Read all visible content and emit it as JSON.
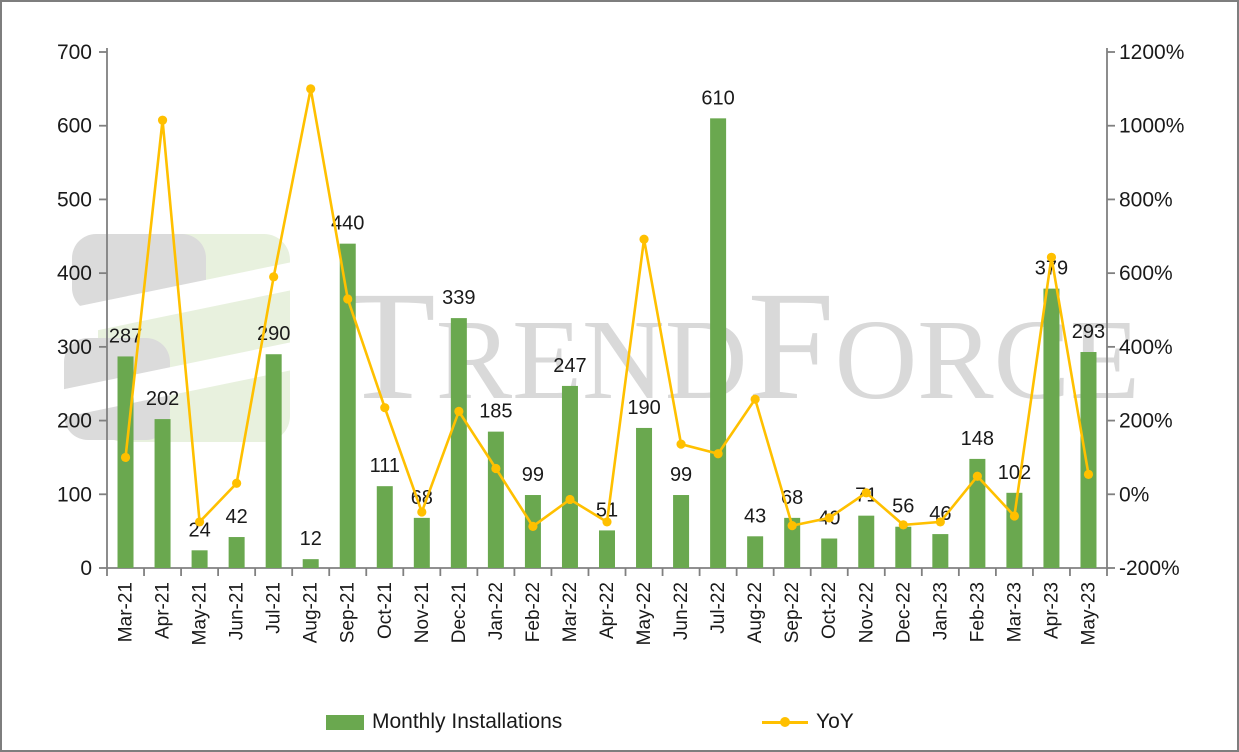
{
  "watermark": {
    "text": "TrendForce",
    "segments": [
      {
        "t": "T",
        "big": true
      },
      {
        "t": "REND",
        "big": false
      },
      {
        "t": "F",
        "big": true
      },
      {
        "t": "ORCE",
        "big": false
      }
    ],
    "text_color": "#d9d9d9",
    "logo_gray": "#dbdbdb",
    "logo_green": "#e8f1de"
  },
  "legend": {
    "bars_label": "Monthly Installations",
    "line_label": "YoY"
  },
  "chart_data": {
    "type": "bar",
    "subtype": "combo bar + line, dual axis",
    "categories": [
      "Mar-21",
      "Apr-21",
      "May-21",
      "Jun-21",
      "Jul-21",
      "Aug-21",
      "Sep-21",
      "Oct-21",
      "Nov-21",
      "Dec-21",
      "Jan-22",
      "Feb-22",
      "Mar-22",
      "Apr-22",
      "May-22",
      "Jun-22",
      "Jul-22",
      "Aug-22",
      "Sep-22",
      "Oct-22",
      "Nov-22",
      "Dec-22",
      "Jan-23",
      "Feb-23",
      "Mar-23",
      "Apr-23",
      "May-23"
    ],
    "series": [
      {
        "name": "Monthly Installations",
        "type": "bar",
        "axis": "left",
        "color": "#6aa84f",
        "values": [
          287,
          202,
          24,
          42,
          290,
          12,
          440,
          111,
          68,
          339,
          185,
          99,
          247,
          51,
          190,
          99,
          610,
          43,
          68,
          40,
          71,
          56,
          46,
          148,
          102,
          379,
          293
        ]
      },
      {
        "name": "YoY",
        "type": "line",
        "axis": "right",
        "color": "#ffc000",
        "unit": "%",
        "values": [
          100,
          1015,
          -75,
          30,
          590,
          1100,
          530,
          235,
          -48,
          225,
          70,
          -87,
          -14,
          -75,
          692,
          136,
          110,
          258,
          -85,
          -64,
          4,
          -83,
          -75,
          49,
          -59,
          643,
          54
        ]
      }
    ],
    "left_axis": {
      "min": 0,
      "max": 700,
      "step": 100,
      "tick_labels": [
        "0",
        "100",
        "200",
        "300",
        "400",
        "500",
        "600",
        "700"
      ]
    },
    "right_axis": {
      "min": -200,
      "max": 1200,
      "step": 200,
      "tick_labels": [
        "-200%",
        "0%",
        "200%",
        "400%",
        "600%",
        "800%",
        "1000%",
        "1200%"
      ]
    },
    "bar_labels_shown": true,
    "grid": false,
    "legend_position": "bottom",
    "text_color": "#1a1a1a",
    "axis_color": "#808080"
  }
}
